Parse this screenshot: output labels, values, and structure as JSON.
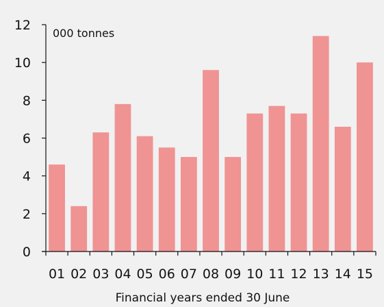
{
  "chart_data": {
    "type": "bar",
    "unit_label": "000 tonnes",
    "xlabel": "Financial years ended 30 June",
    "ylabel": "",
    "categories": [
      "01",
      "02",
      "03",
      "04",
      "05",
      "06",
      "07",
      "08",
      "09",
      "10",
      "11",
      "12",
      "13",
      "14",
      "15"
    ],
    "values": [
      4.6,
      2.4,
      6.3,
      7.8,
      6.1,
      5.5,
      5.0,
      9.6,
      5.0,
      7.3,
      7.7,
      7.3,
      11.4,
      6.6,
      10.0
    ],
    "yticks": [
      "0",
      "2",
      "4",
      "6",
      "8",
      "10",
      "12"
    ],
    "ylim": [
      0,
      12
    ],
    "grid": false,
    "bar_color": "#f09393",
    "background_color": "#f1f1f1"
  }
}
